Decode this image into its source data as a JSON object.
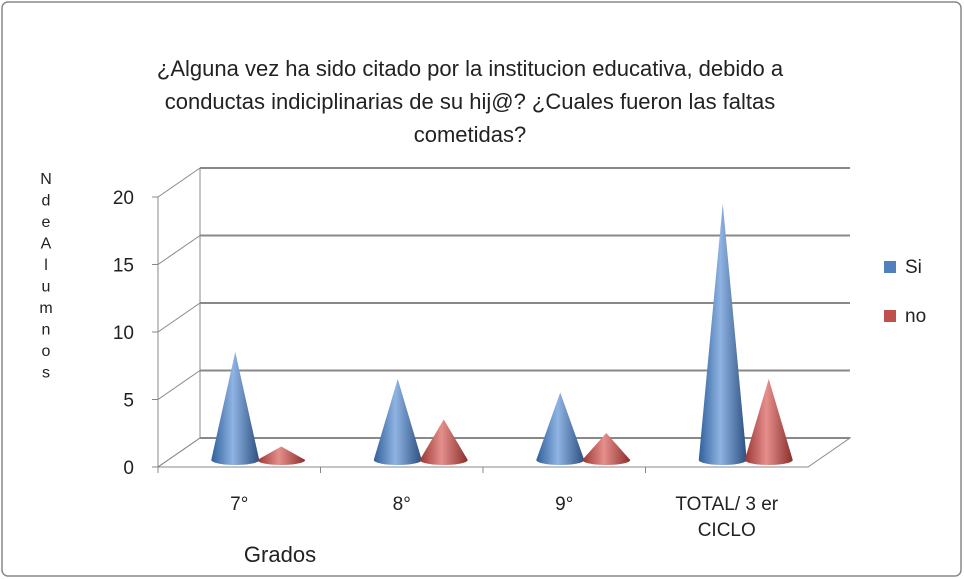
{
  "chart_data": {
    "type": "cone",
    "title": [
      "¿Alguna vez ha sido citado por la institucion educativa, debido  a",
      "conductas indiciplinarias  de su hij@? ¿Cuales fueron las faltas",
      "cometidas?"
    ],
    "y_axis_label": "N de Alumnos",
    "x_axis_label": "Grados",
    "categories": [
      "7°",
      "8°",
      "9°",
      "TOTAL/ 3 er CICLO"
    ],
    "series": [
      {
        "name": "Si",
        "color": "#4f81bd",
        "values": [
          8,
          6,
          5,
          19
        ]
      },
      {
        "name": "no",
        "color": "#c0504d",
        "values": [
          1,
          3,
          2,
          6
        ]
      }
    ],
    "ylim": [
      0,
      20
    ],
    "yticks": [
      0,
      5,
      10,
      15,
      20
    ],
    "grid": true,
    "legend": "right"
  }
}
